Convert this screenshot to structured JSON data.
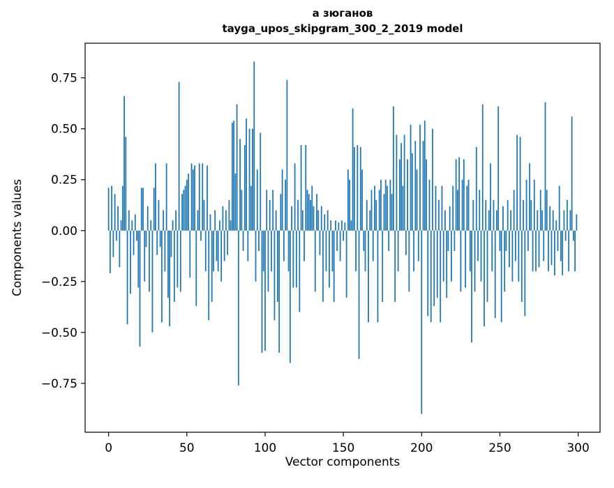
{
  "figure": {
    "title_line1": "а зюганов",
    "title_line2": "tayga_upos_skipgram_300_2_2019 model",
    "xlabel": "Vector components",
    "ylabel": "Components values"
  },
  "chart_data": {
    "type": "bar",
    "title": "а зюганов — tayga_upos_skipgram_300_2_2019 model",
    "xlabel": "Vector components",
    "ylabel": "Components values",
    "bar_color": "#1f77b4",
    "n_components": 300,
    "xlim": [
      -15,
      314
    ],
    "ylim": [
      -0.99,
      0.92
    ],
    "x_ticks": [
      0,
      50,
      100,
      150,
      200,
      250,
      300
    ],
    "y_ticks": [
      -0.75,
      -0.5,
      -0.25,
      0,
      0.25,
      0.5,
      0.75
    ],
    "grid": false,
    "legend": "none",
    "values": [
      0.21,
      -0.21,
      0.22,
      -0.13,
      0.18,
      -0.05,
      0.12,
      -0.18,
      0.05,
      0.22,
      0.66,
      0.46,
      -0.46,
      0.1,
      -0.31,
      0.05,
      -0.12,
      0.08,
      -0.05,
      -0.28,
      -0.57,
      0.21,
      0.21,
      -0.25,
      -0.08,
      0.12,
      -0.3,
      0.05,
      -0.5,
      0.21,
      0.33,
      -0.12,
      0.15,
      -0.08,
      -0.45,
      0.1,
      -0.2,
      0.33,
      -0.33,
      -0.47,
      -0.13,
      0.05,
      -0.35,
      0.1,
      -0.28,
      0.73,
      -0.3,
      0.18,
      0.2,
      0.22,
      0.25,
      0.28,
      -0.23,
      0.33,
      0.3,
      0.32,
      -0.37,
      0.1,
      0.33,
      -0.05,
      0.33,
      0.15,
      -0.2,
      0.32,
      -0.44,
      0.08,
      -0.35,
      -0.2,
      0.1,
      -0.15,
      -0.2,
      0.05,
      -0.25,
      0.12,
      -0.15,
      0.1,
      -0.12,
      0.15,
      0.05,
      0.53,
      0.54,
      0.28,
      0.62,
      -0.76,
      0.45,
      0.2,
      -0.1,
      0.42,
      0.55,
      -0.15,
      0.5,
      0.22,
      0.5,
      0.83,
      -0.25,
      0.3,
      -0.1,
      0.48,
      -0.6,
      -0.2,
      -0.59,
      0.2,
      -0.3,
      0.15,
      -0.2,
      0.2,
      -0.44,
      0.1,
      -0.35,
      -0.6,
      0.18,
      0.3,
      -0.15,
      0.25,
      0.74,
      -0.2,
      -0.65,
      0.12,
      -0.28,
      0.33,
      -0.28,
      0.15,
      -0.4,
      0.42,
      0.1,
      -0.15,
      0.42,
      0.2,
      0.18,
      0.15,
      0.22,
      0.12,
      -0.3,
      0.18,
      0.1,
      -0.12,
      0.12,
      -0.35,
      0.08,
      -0.2,
      0.1,
      -0.28,
      0.05,
      -0.2,
      -0.35,
      0.05,
      -0.1,
      0.04,
      -0.15,
      0.05,
      -0.05,
      0.04,
      -0.33,
      0.3,
      0.25,
      0.05,
      0.6,
      0.41,
      -0.2,
      0.42,
      -0.63,
      0.41,
      0.3,
      -0.1,
      -0.2,
      0.15,
      -0.45,
      0.1,
      0.2,
      -0.15,
      0.22,
      0.15,
      -0.45,
      0.2,
      0.25,
      -0.35,
      0.18,
      0.25,
      0.22,
      -0.1,
      0.25,
      0.18,
      0.61,
      -0.35,
      0.47,
      -0.2,
      0.35,
      0.43,
      0.22,
      0.47,
      -0.12,
      0.35,
      -0.3,
      0.52,
      0.38,
      -0.2,
      0.44,
      0.3,
      -0.15,
      0.52,
      -0.9,
      0.44,
      0.54,
      0.35,
      -0.42,
      0.25,
      -0.45,
      0.5,
      -0.37,
      0.22,
      -0.33,
      0.15,
      -0.45,
      0.22,
      -0.25,
      0.1,
      -0.33,
      -0.1,
      0.12,
      -0.25,
      0.22,
      -0.1,
      0.35,
      0.2,
      0.36,
      -0.3,
      0.25,
      0.35,
      -0.28,
      0.22,
      0.25,
      -0.2,
      -0.55,
      0.15,
      -0.3,
      0.41,
      -0.15,
      0.2,
      -0.25,
      0.62,
      -0.47,
      0.15,
      -0.35,
      0.1,
      0.33,
      -0.2,
      0.15,
      -0.43,
      0.1,
      0.61,
      -0.1,
      -0.45,
      0.12,
      -0.3,
      -0.1,
      0.15,
      -0.18,
      0.1,
      -0.25,
      0.2,
      -0.15,
      0.47,
      -0.25,
      0.46,
      -0.35,
      0.15,
      -0.42,
      0.25,
      -0.1,
      0.33,
      0.15,
      -0.2,
      0.25,
      -0.2,
      0.1,
      -0.18,
      0.2,
      0.1,
      -0.15,
      0.63,
      0.2,
      -0.2,
      0.12,
      -0.17,
      0.1,
      -0.22,
      0.05,
      -0.1,
      0.22,
      -0.15,
      -0.22,
      0.1,
      -0.05,
      0.15,
      -0.2,
      0.1,
      0.56,
      -0.05,
      -0.2,
      0.08
    ]
  }
}
